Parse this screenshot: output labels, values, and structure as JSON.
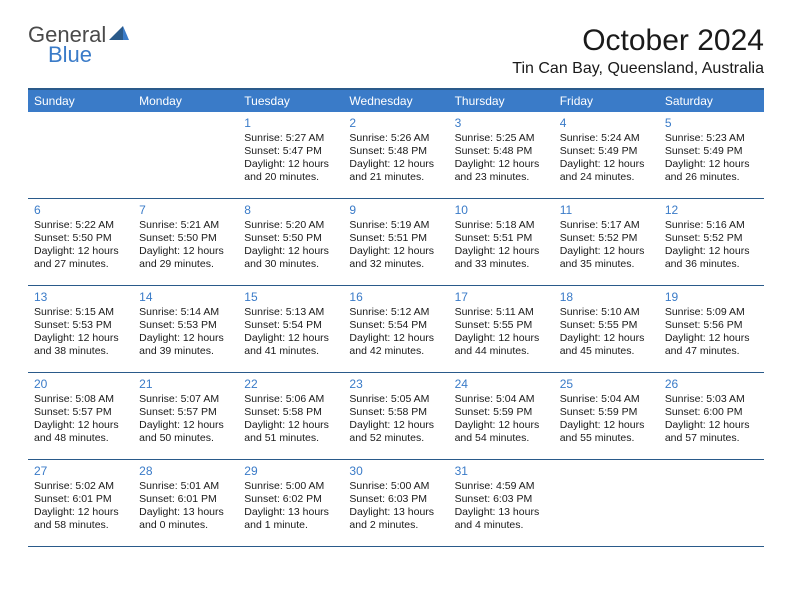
{
  "logo": {
    "text1": "General",
    "text2": "Blue"
  },
  "title": "October 2024",
  "location": "Tin Can Bay, Queensland, Australia",
  "colors": {
    "brand": "#3a7bc8",
    "header_bg": "#3a7bc8",
    "header_text": "#ffffff",
    "border": "#2a5a8a",
    "text": "#1a1a1a",
    "background": "#ffffff"
  },
  "dayHeaders": [
    "Sunday",
    "Monday",
    "Tuesday",
    "Wednesday",
    "Thursday",
    "Friday",
    "Saturday"
  ],
  "weeks": [
    [
      null,
      null,
      {
        "n": "1",
        "sr": "Sunrise: 5:27 AM",
        "ss": "Sunset: 5:47 PM",
        "d1": "Daylight: 12 hours",
        "d2": "and 20 minutes."
      },
      {
        "n": "2",
        "sr": "Sunrise: 5:26 AM",
        "ss": "Sunset: 5:48 PM",
        "d1": "Daylight: 12 hours",
        "d2": "and 21 minutes."
      },
      {
        "n": "3",
        "sr": "Sunrise: 5:25 AM",
        "ss": "Sunset: 5:48 PM",
        "d1": "Daylight: 12 hours",
        "d2": "and 23 minutes."
      },
      {
        "n": "4",
        "sr": "Sunrise: 5:24 AM",
        "ss": "Sunset: 5:49 PM",
        "d1": "Daylight: 12 hours",
        "d2": "and 24 minutes."
      },
      {
        "n": "5",
        "sr": "Sunrise: 5:23 AM",
        "ss": "Sunset: 5:49 PM",
        "d1": "Daylight: 12 hours",
        "d2": "and 26 minutes."
      }
    ],
    [
      {
        "n": "6",
        "sr": "Sunrise: 5:22 AM",
        "ss": "Sunset: 5:50 PM",
        "d1": "Daylight: 12 hours",
        "d2": "and 27 minutes."
      },
      {
        "n": "7",
        "sr": "Sunrise: 5:21 AM",
        "ss": "Sunset: 5:50 PM",
        "d1": "Daylight: 12 hours",
        "d2": "and 29 minutes."
      },
      {
        "n": "8",
        "sr": "Sunrise: 5:20 AM",
        "ss": "Sunset: 5:50 PM",
        "d1": "Daylight: 12 hours",
        "d2": "and 30 minutes."
      },
      {
        "n": "9",
        "sr": "Sunrise: 5:19 AM",
        "ss": "Sunset: 5:51 PM",
        "d1": "Daylight: 12 hours",
        "d2": "and 32 minutes."
      },
      {
        "n": "10",
        "sr": "Sunrise: 5:18 AM",
        "ss": "Sunset: 5:51 PM",
        "d1": "Daylight: 12 hours",
        "d2": "and 33 minutes."
      },
      {
        "n": "11",
        "sr": "Sunrise: 5:17 AM",
        "ss": "Sunset: 5:52 PM",
        "d1": "Daylight: 12 hours",
        "d2": "and 35 minutes."
      },
      {
        "n": "12",
        "sr": "Sunrise: 5:16 AM",
        "ss": "Sunset: 5:52 PM",
        "d1": "Daylight: 12 hours",
        "d2": "and 36 minutes."
      }
    ],
    [
      {
        "n": "13",
        "sr": "Sunrise: 5:15 AM",
        "ss": "Sunset: 5:53 PM",
        "d1": "Daylight: 12 hours",
        "d2": "and 38 minutes."
      },
      {
        "n": "14",
        "sr": "Sunrise: 5:14 AM",
        "ss": "Sunset: 5:53 PM",
        "d1": "Daylight: 12 hours",
        "d2": "and 39 minutes."
      },
      {
        "n": "15",
        "sr": "Sunrise: 5:13 AM",
        "ss": "Sunset: 5:54 PM",
        "d1": "Daylight: 12 hours",
        "d2": "and 41 minutes."
      },
      {
        "n": "16",
        "sr": "Sunrise: 5:12 AM",
        "ss": "Sunset: 5:54 PM",
        "d1": "Daylight: 12 hours",
        "d2": "and 42 minutes."
      },
      {
        "n": "17",
        "sr": "Sunrise: 5:11 AM",
        "ss": "Sunset: 5:55 PM",
        "d1": "Daylight: 12 hours",
        "d2": "and 44 minutes."
      },
      {
        "n": "18",
        "sr": "Sunrise: 5:10 AM",
        "ss": "Sunset: 5:55 PM",
        "d1": "Daylight: 12 hours",
        "d2": "and 45 minutes."
      },
      {
        "n": "19",
        "sr": "Sunrise: 5:09 AM",
        "ss": "Sunset: 5:56 PM",
        "d1": "Daylight: 12 hours",
        "d2": "and 47 minutes."
      }
    ],
    [
      {
        "n": "20",
        "sr": "Sunrise: 5:08 AM",
        "ss": "Sunset: 5:57 PM",
        "d1": "Daylight: 12 hours",
        "d2": "and 48 minutes."
      },
      {
        "n": "21",
        "sr": "Sunrise: 5:07 AM",
        "ss": "Sunset: 5:57 PM",
        "d1": "Daylight: 12 hours",
        "d2": "and 50 minutes."
      },
      {
        "n": "22",
        "sr": "Sunrise: 5:06 AM",
        "ss": "Sunset: 5:58 PM",
        "d1": "Daylight: 12 hours",
        "d2": "and 51 minutes."
      },
      {
        "n": "23",
        "sr": "Sunrise: 5:05 AM",
        "ss": "Sunset: 5:58 PM",
        "d1": "Daylight: 12 hours",
        "d2": "and 52 minutes."
      },
      {
        "n": "24",
        "sr": "Sunrise: 5:04 AM",
        "ss": "Sunset: 5:59 PM",
        "d1": "Daylight: 12 hours",
        "d2": "and 54 minutes."
      },
      {
        "n": "25",
        "sr": "Sunrise: 5:04 AM",
        "ss": "Sunset: 5:59 PM",
        "d1": "Daylight: 12 hours",
        "d2": "and 55 minutes."
      },
      {
        "n": "26",
        "sr": "Sunrise: 5:03 AM",
        "ss": "Sunset: 6:00 PM",
        "d1": "Daylight: 12 hours",
        "d2": "and 57 minutes."
      }
    ],
    [
      {
        "n": "27",
        "sr": "Sunrise: 5:02 AM",
        "ss": "Sunset: 6:01 PM",
        "d1": "Daylight: 12 hours",
        "d2": "and 58 minutes."
      },
      {
        "n": "28",
        "sr": "Sunrise: 5:01 AM",
        "ss": "Sunset: 6:01 PM",
        "d1": "Daylight: 13 hours",
        "d2": "and 0 minutes."
      },
      {
        "n": "29",
        "sr": "Sunrise: 5:00 AM",
        "ss": "Sunset: 6:02 PM",
        "d1": "Daylight: 13 hours",
        "d2": "and 1 minute."
      },
      {
        "n": "30",
        "sr": "Sunrise: 5:00 AM",
        "ss": "Sunset: 6:03 PM",
        "d1": "Daylight: 13 hours",
        "d2": "and 2 minutes."
      },
      {
        "n": "31",
        "sr": "Sunrise: 4:59 AM",
        "ss": "Sunset: 6:03 PM",
        "d1": "Daylight: 13 hours",
        "d2": "and 4 minutes."
      },
      null,
      null
    ]
  ]
}
